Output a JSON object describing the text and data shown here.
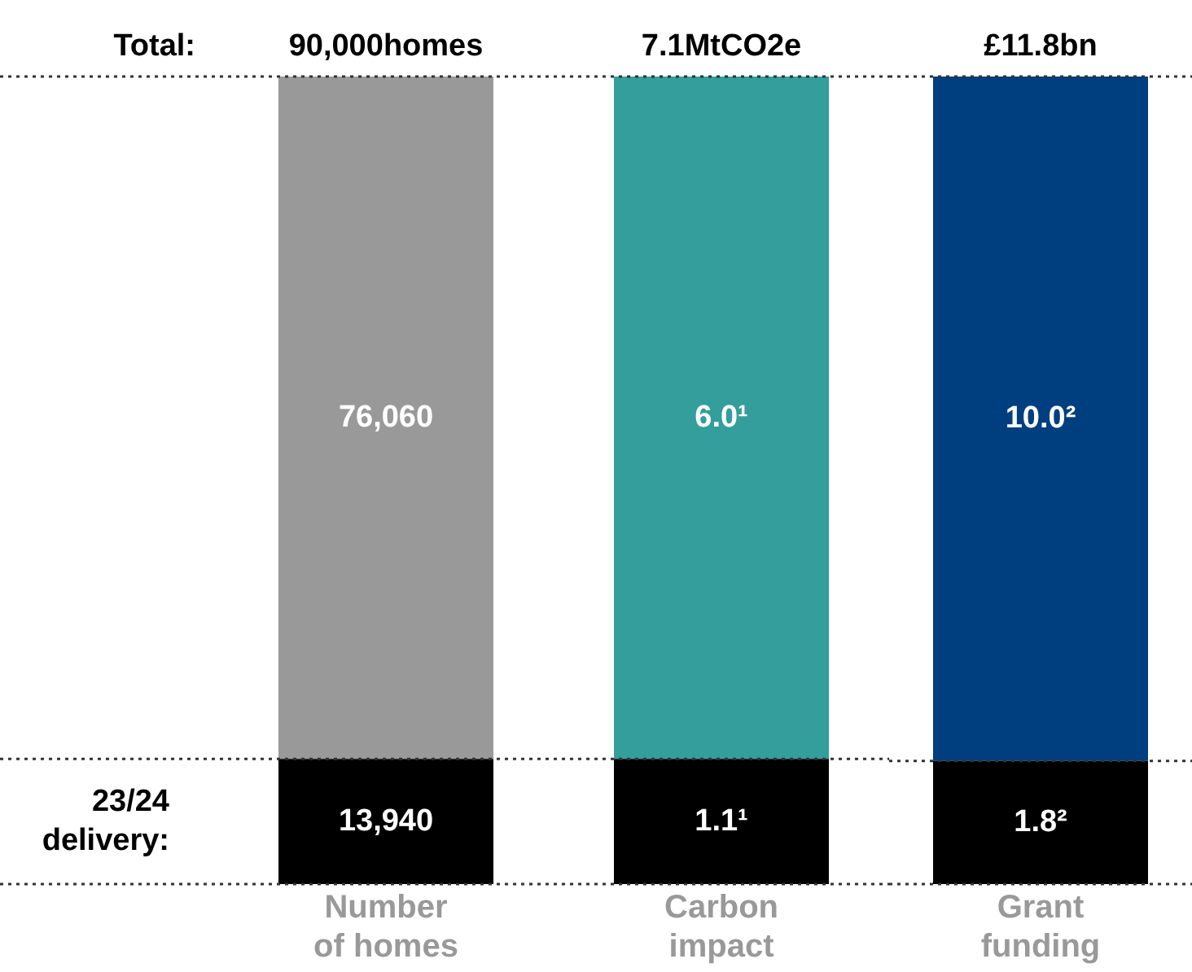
{
  "chart_data": [
    {
      "type": "bar",
      "stacked": true,
      "categories": [
        "Number of homes"
      ],
      "ylim": [
        0,
        90000
      ],
      "tick_labels": "x",
      "series": [
        {
          "color": "#000000",
          "values": [
            13940
          ],
          "value_labels": [
            "13,940"
          ]
        },
        {
          "color": "#999999",
          "values": [
            76060
          ],
          "value_labels": [
            "76,060"
          ]
        }
      ],
      "totals": [
        "90,000homes"
      ],
      "annotations": [
        "Total:",
        "23/24 delivery:"
      ],
      "ref_lines": [
        {
          "axis": "y",
          "value": 90000,
          "color": "#333333",
          "line_style": "dotted"
        },
        {
          "axis": "y",
          "value": 13940,
          "color": "#333333",
          "line_style": "dotted"
        },
        {
          "axis": "y",
          "value": 0,
          "color": "#333333",
          "line_style": "dotted"
        }
      ],
      "grid": false,
      "legend": false
    },
    {
      "type": "bar",
      "stacked": true,
      "categories": [
        "Carbon impact"
      ],
      "ylim": [
        0,
        7.1
      ],
      "tick_labels": "x",
      "series": [
        {
          "color": "#000000",
          "values": [
            1.1
          ],
          "value_labels": [
            "1.1¹"
          ]
        },
        {
          "color": "#339e9c",
          "values": [
            6.0
          ],
          "value_labels": [
            "6.0¹"
          ]
        }
      ],
      "totals": [
        "7.1MtCO2e"
      ],
      "ref_lines": [
        {
          "axis": "y",
          "value": 7.1,
          "color": "#333333",
          "line_style": "dotted"
        },
        {
          "axis": "y",
          "value": 1.1,
          "color": "#333333",
          "line_style": "dotted"
        },
        {
          "axis": "y",
          "value": 0,
          "color": "#333333",
          "line_style": "dotted"
        }
      ],
      "grid": false,
      "legend": false
    },
    {
      "type": "bar",
      "stacked": true,
      "categories": [
        "Grant funding"
      ],
      "ylim": [
        0,
        11.8
      ],
      "tick_labels": "x",
      "series": [
        {
          "color": "#000000",
          "values": [
            1.8
          ],
          "value_labels": [
            "1.8²"
          ]
        },
        {
          "color": "#003f7f",
          "values": [
            10.0
          ],
          "value_labels": [
            "10.0²"
          ]
        }
      ],
      "totals": [
        "£11.8bn"
      ],
      "ref_lines": [
        {
          "axis": "y",
          "value": 11.8,
          "color": "#333333",
          "line_style": "dotted"
        },
        {
          "axis": "y",
          "value": 1.8,
          "color": "#333333",
          "line_style": "dotted"
        },
        {
          "axis": "y",
          "value": 0,
          "color": "#333333",
          "line_style": "dotted"
        }
      ],
      "grid": false,
      "legend": false
    }
  ]
}
